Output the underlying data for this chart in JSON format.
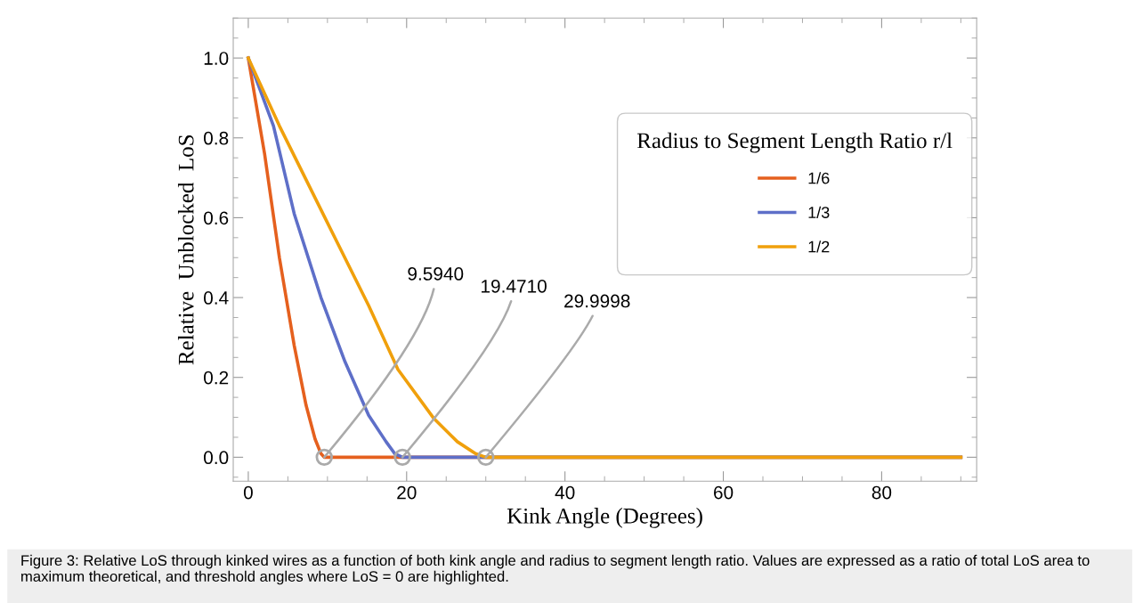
{
  "chart_data": {
    "type": "line",
    "xlabel": "Kink Angle (Degrees)",
    "ylabel": "Relative  Unblocked  LoS",
    "legend_title": "Radius to Segment Length Ratio r/l",
    "legend": "right",
    "xlim": [
      -1.9,
      92
    ],
    "ylim": [
      -0.06,
      1.1
    ],
    "xticks": [
      0,
      20,
      40,
      60,
      80
    ],
    "yticks": [
      {
        "value": 0,
        "label": "0.0"
      },
      0.2,
      0.4,
      0.6,
      0.8,
      {
        "value": 1,
        "label": "1.0"
      }
    ],
    "grid": false,
    "marker": "none",
    "line_style": "solid",
    "series": [
      {
        "name": "1/6",
        "color": "#e5601e",
        "x": [
          0,
          2.06,
          3.93,
          5.8,
          7.3,
          8.43,
          9.18,
          9.594,
          90
        ],
        "values": [
          1.0,
          0.76,
          0.5,
          0.28,
          0.13,
          0.046,
          0.009,
          0,
          0
        ]
      },
      {
        "name": "1/3",
        "color": "#5e6fc8",
        "x": [
          0,
          3.18,
          5.8,
          9.18,
          12.2,
          15.2,
          17.4,
          18.5,
          19.471,
          90
        ],
        "values": [
          1.0,
          0.83,
          0.61,
          0.4,
          0.24,
          0.105,
          0.039,
          0.009,
          0,
          0
        ]
      },
      {
        "name": "1/2",
        "color": "#f0a00c",
        "x": [
          0,
          3.93,
          9.93,
          15.2,
          18.9,
          23.4,
          26.4,
          28.7,
          29.9998,
          90
        ],
        "values": [
          1.0,
          0.83,
          0.59,
          0.38,
          0.22,
          0.098,
          0.039,
          0.009,
          0,
          0
        ]
      }
    ],
    "annotations": [
      {
        "text": "9.5940",
        "x": 9.594,
        "y": 0
      },
      {
        "text": "19.4710",
        "x": 19.471,
        "y": 0
      },
      {
        "text": "29.9998",
        "x": 29.9998,
        "y": 0
      },
      "Figure 3: Relative LoS through kinked wires as a function of both kink angle and radius to segment length ratio. Values are expressed as a ratio of total LoS area to maximum theoretical, and threshold angles where LoS = 0 are highlighted."
    ]
  }
}
